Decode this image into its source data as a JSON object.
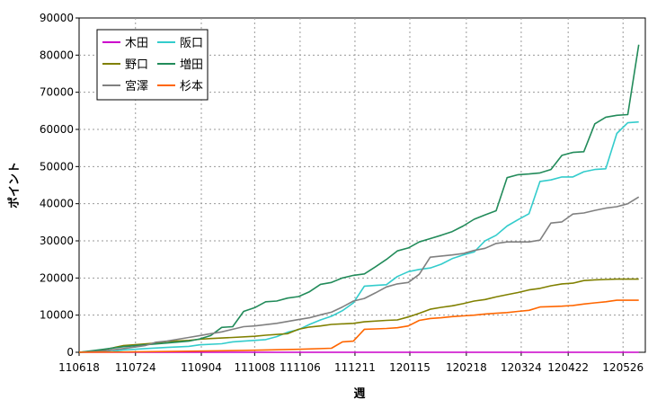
{
  "chart_data": {
    "type": "line",
    "title": "",
    "xlabel": "週",
    "ylabel": "ポイント",
    "ylim": [
      0,
      90000
    ],
    "yticks": [
      0,
      10000,
      20000,
      30000,
      40000,
      50000,
      60000,
      70000,
      80000,
      90000
    ],
    "x_ticks": [
      "110618",
      "110724",
      "110904",
      "111008",
      "111106",
      "111211",
      "120115",
      "120218",
      "120324",
      "120422",
      "120526"
    ],
    "x_tick_positions": [
      0,
      5.14,
      11.14,
      16,
      20.14,
      25.14,
      30.14,
      35.29,
      40.29,
      44.57,
      49.57
    ],
    "grid": true,
    "legend_position": "top-left",
    "series": [
      {
        "name": "木田",
        "color": "#cc00cc",
        "points": [
          [
            0,
            0
          ],
          [
            51,
            0
          ]
        ]
      },
      {
        "name": "阪口",
        "color": "#33cccc",
        "points": [
          [
            0,
            0
          ],
          [
            3,
            200
          ],
          [
            4,
            600
          ],
          [
            6,
            1000
          ],
          [
            8,
            1300
          ],
          [
            10,
            1600
          ],
          [
            11,
            2000
          ],
          [
            13,
            2300
          ],
          [
            14,
            2800
          ],
          [
            15,
            3000
          ],
          [
            17,
            3400
          ],
          [
            18,
            4200
          ],
          [
            19,
            5400
          ],
          [
            20,
            6100
          ],
          [
            21,
            7500
          ],
          [
            22,
            8700
          ],
          [
            23,
            9700
          ],
          [
            24,
            11200
          ],
          [
            25,
            13300
          ],
          [
            26,
            17800
          ],
          [
            27,
            18000
          ],
          [
            28,
            18200
          ],
          [
            29,
            20400
          ],
          [
            30,
            21700
          ],
          [
            31,
            22300
          ],
          [
            32,
            22700
          ],
          [
            33,
            23700
          ],
          [
            34,
            25200
          ],
          [
            35,
            26200
          ],
          [
            36,
            27000
          ],
          [
            37,
            30000
          ],
          [
            38,
            31500
          ],
          [
            39,
            34000
          ],
          [
            40,
            35700
          ],
          [
            41,
            37300
          ],
          [
            42,
            46000
          ],
          [
            43,
            46400
          ],
          [
            44,
            47200
          ],
          [
            45,
            47200
          ],
          [
            46,
            48600
          ],
          [
            47,
            49200
          ],
          [
            48,
            49400
          ],
          [
            49,
            58900
          ],
          [
            50,
            61800
          ],
          [
            51,
            62000
          ]
        ]
      },
      {
        "name": "野口",
        "color": "#808000",
        "points": [
          [
            0,
            0
          ],
          [
            2,
            500
          ],
          [
            4,
            1800
          ],
          [
            5,
            2000
          ],
          [
            7,
            2500
          ],
          [
            8,
            2900
          ],
          [
            10,
            3200
          ],
          [
            11,
            3500
          ],
          [
            12,
            3700
          ],
          [
            14,
            4000
          ],
          [
            16,
            4300
          ],
          [
            17,
            4600
          ],
          [
            19,
            5000
          ],
          [
            20,
            6200
          ],
          [
            21,
            6800
          ],
          [
            22,
            7100
          ],
          [
            23,
            7500
          ],
          [
            25,
            7800
          ],
          [
            26,
            8200
          ],
          [
            28,
            8600
          ],
          [
            29,
            8700
          ],
          [
            30,
            9500
          ],
          [
            31,
            10500
          ],
          [
            32,
            11600
          ],
          [
            33,
            12100
          ],
          [
            34,
            12500
          ],
          [
            35,
            13100
          ],
          [
            36,
            13800
          ],
          [
            37,
            14200
          ],
          [
            38,
            14900
          ],
          [
            39,
            15500
          ],
          [
            40,
            16100
          ],
          [
            41,
            16800
          ],
          [
            42,
            17200
          ],
          [
            43,
            17900
          ],
          [
            44,
            18400
          ],
          [
            45,
            18600
          ],
          [
            46,
            19300
          ],
          [
            47,
            19500
          ],
          [
            48,
            19600
          ],
          [
            49,
            19700
          ],
          [
            51,
            19700
          ]
        ]
      },
      {
        "name": "増田",
        "color": "#228b5a",
        "points": [
          [
            0,
            0
          ],
          [
            2,
            700
          ],
          [
            4,
            1500
          ],
          [
            6,
            2000
          ],
          [
            8,
            2500
          ],
          [
            10,
            3000
          ],
          [
            11,
            3600
          ],
          [
            12,
            4500
          ],
          [
            13,
            6700
          ],
          [
            14,
            6900
          ],
          [
            15,
            11000
          ],
          [
            16,
            12000
          ],
          [
            17,
            13600
          ],
          [
            18,
            13800
          ],
          [
            19,
            14600
          ],
          [
            20,
            15000
          ],
          [
            21,
            16300
          ],
          [
            22,
            18300
          ],
          [
            23,
            18800
          ],
          [
            24,
            20000
          ],
          [
            25,
            20700
          ],
          [
            26,
            21100
          ],
          [
            27,
            23000
          ],
          [
            28,
            25000
          ],
          [
            29,
            27300
          ],
          [
            30,
            28100
          ],
          [
            31,
            29700
          ],
          [
            32,
            30600
          ],
          [
            33,
            31500
          ],
          [
            34,
            32500
          ],
          [
            35,
            34000
          ],
          [
            36,
            35800
          ],
          [
            37,
            37000
          ],
          [
            38,
            38100
          ],
          [
            39,
            47000
          ],
          [
            40,
            47800
          ],
          [
            41,
            48000
          ],
          [
            42,
            48300
          ],
          [
            43,
            49200
          ],
          [
            44,
            53000
          ],
          [
            45,
            53800
          ],
          [
            46,
            54000
          ],
          [
            47,
            61500
          ],
          [
            48,
            63300
          ],
          [
            49,
            63800
          ],
          [
            50,
            64000
          ],
          [
            51,
            82800
          ]
        ]
      },
      {
        "name": "宮澤",
        "color": "#808080",
        "points": [
          [
            0,
            0
          ],
          [
            2,
            300
          ],
          [
            4,
            1000
          ],
          [
            6,
            1800
          ],
          [
            7,
            2700
          ],
          [
            8,
            3000
          ],
          [
            9,
            3500
          ],
          [
            10,
            4000
          ],
          [
            11,
            4500
          ],
          [
            12,
            5000
          ],
          [
            13,
            5500
          ],
          [
            14,
            6200
          ],
          [
            15,
            6900
          ],
          [
            16,
            7100
          ],
          [
            18,
            7800
          ],
          [
            19,
            8300
          ],
          [
            20,
            8800
          ],
          [
            21,
            9300
          ],
          [
            22,
            10100
          ],
          [
            23,
            10800
          ],
          [
            24,
            12200
          ],
          [
            25,
            13800
          ],
          [
            26,
            14500
          ],
          [
            27,
            16000
          ],
          [
            28,
            17600
          ],
          [
            29,
            18400
          ],
          [
            30,
            18800
          ],
          [
            31,
            21000
          ],
          [
            32,
            25600
          ],
          [
            33,
            25900
          ],
          [
            34,
            26200
          ],
          [
            35,
            26600
          ],
          [
            36,
            27400
          ],
          [
            37,
            28000
          ],
          [
            38,
            29300
          ],
          [
            39,
            29700
          ],
          [
            40,
            29700
          ],
          [
            41,
            29700
          ],
          [
            42,
            30200
          ],
          [
            43,
            34800
          ],
          [
            44,
            35100
          ],
          [
            45,
            37200
          ],
          [
            46,
            37500
          ],
          [
            47,
            38200
          ],
          [
            48,
            38800
          ],
          [
            49,
            39200
          ],
          [
            50,
            40000
          ],
          [
            51,
            41800
          ]
        ]
      },
      {
        "name": "杉本",
        "color": "#ff6600",
        "points": [
          [
            0,
            0
          ],
          [
            5,
            100
          ],
          [
            10,
            300
          ],
          [
            15,
            500
          ],
          [
            20,
            800
          ],
          [
            23,
            1100
          ],
          [
            24,
            2800
          ],
          [
            25,
            3000
          ],
          [
            26,
            6200
          ],
          [
            27,
            6300
          ],
          [
            28,
            6400
          ],
          [
            29,
            6600
          ],
          [
            30,
            7100
          ],
          [
            31,
            8600
          ],
          [
            32,
            9100
          ],
          [
            33,
            9300
          ],
          [
            34,
            9600
          ],
          [
            35,
            9800
          ],
          [
            36,
            10000
          ],
          [
            37,
            10300
          ],
          [
            38,
            10500
          ],
          [
            39,
            10700
          ],
          [
            40,
            11000
          ],
          [
            41,
            11300
          ],
          [
            42,
            12200
          ],
          [
            43,
            12300
          ],
          [
            44,
            12400
          ],
          [
            45,
            12600
          ],
          [
            46,
            13000
          ],
          [
            47,
            13300
          ],
          [
            48,
            13600
          ],
          [
            49,
            14000
          ],
          [
            51,
            14000
          ]
        ]
      }
    ]
  }
}
